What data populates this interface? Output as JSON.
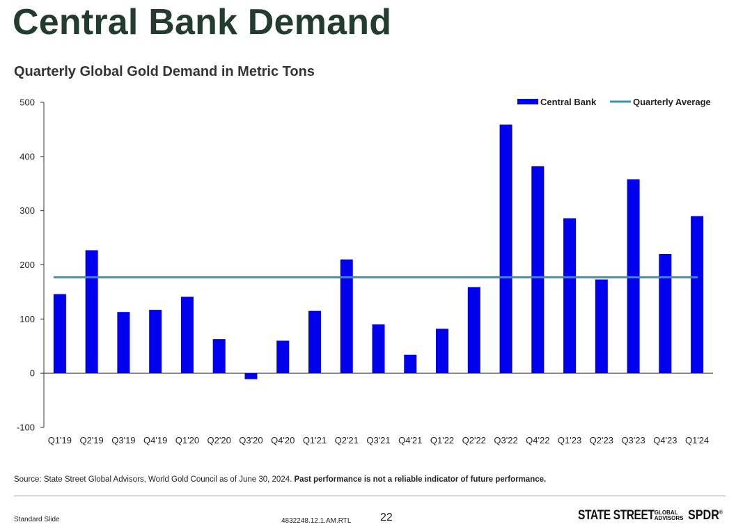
{
  "slide": {
    "title": "Central Bank Demand",
    "subtitle": "Quarterly Global Gold Demand in Metric Tons",
    "source_text": "Source: State Street Global Advisors, World Gold Council as of June 30, 2024. ",
    "disclaimer": "Past performance  is not a reliable  indicator  of future performance.",
    "footer_left": "Standard  Slide",
    "doc_code": "4832248.12.1.AM.RTL",
    "page_number": "22",
    "logo_main": "STATE STREET",
    "logo_sub_1": "GLOBAL",
    "logo_sub_2": "ADVISORS",
    "logo_brand": "SPDR",
    "logo_mark": "®"
  },
  "chart_data": {
    "type": "bar",
    "categories": [
      "Q1'19",
      "Q2'19",
      "Q3'19",
      "Q4'19",
      "Q1'20",
      "Q2'20",
      "Q3'20",
      "Q4'20",
      "Q1'21",
      "Q2'21",
      "Q3'21",
      "Q4'21",
      "Q1'22",
      "Q2'22",
      "Q3'22",
      "Q4'22",
      "Q1'23",
      "Q2'23",
      "Q3'23",
      "Q4'23",
      "Q1'24"
    ],
    "series": [
      {
        "name": "Central Bank",
        "type": "bar",
        "color": "#0000ee",
        "values": [
          146,
          227,
          113,
          117,
          141,
          63,
          -11,
          60,
          115,
          210,
          90,
          34,
          82,
          159,
          459,
          382,
          286,
          173,
          358,
          220,
          290
        ]
      },
      {
        "name": "Quarterly Average",
        "type": "line",
        "color": "#3a92a6",
        "values": [
          177,
          177,
          177,
          177,
          177,
          177,
          177,
          177,
          177,
          177,
          177,
          177,
          177,
          177,
          177,
          177,
          177,
          177,
          177,
          177,
          177
        ]
      }
    ],
    "ylim": [
      -100,
      500
    ],
    "yticks": [
      -100,
      0,
      100,
      200,
      300,
      400,
      500
    ],
    "grid": false,
    "legend_position": "top-right"
  }
}
